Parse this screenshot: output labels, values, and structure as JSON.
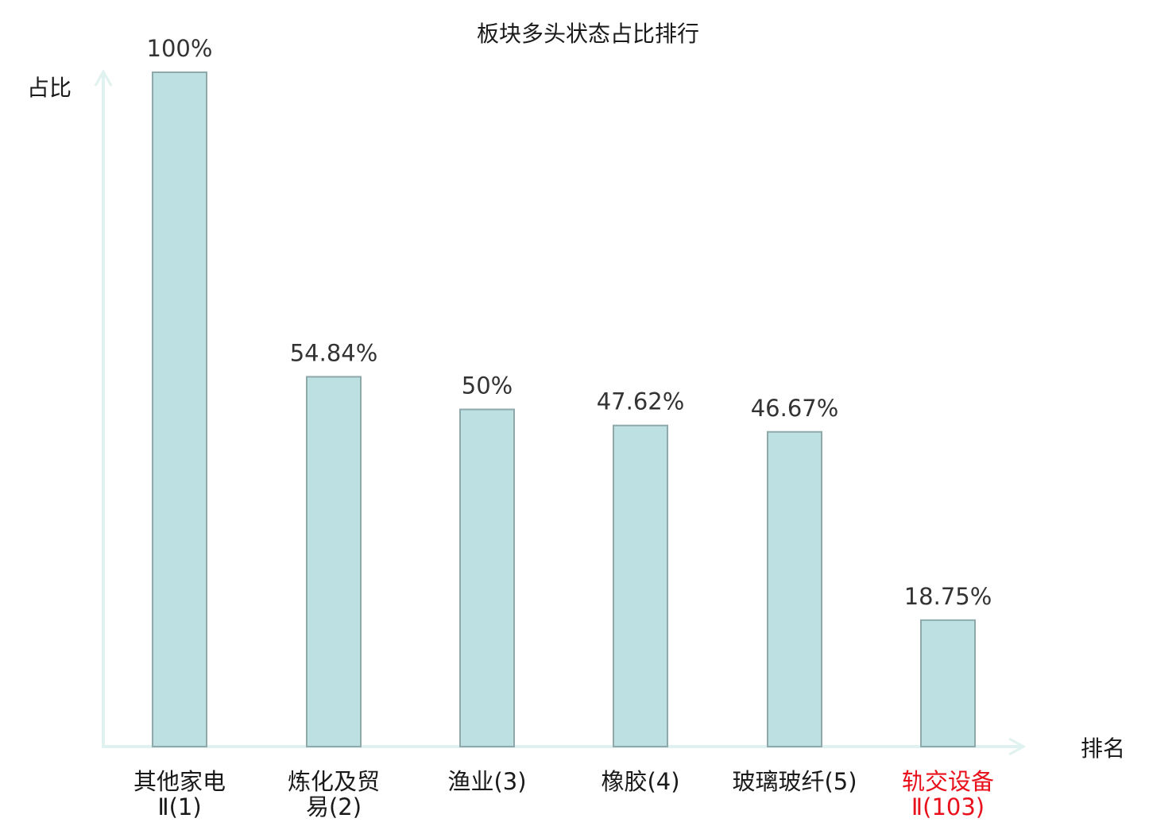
{
  "chart_data": {
    "type": "bar",
    "title": "板块多头状态占比排行",
    "ylabel": "占比",
    "xlabel": "排名",
    "ylim": [
      0,
      100
    ],
    "grid": false,
    "categories": [
      {
        "name": "其他家电",
        "rank": "Ⅱ(1)",
        "highlight": false
      },
      {
        "name": "炼化及贸",
        "rank": "易(2)",
        "highlight": false
      },
      {
        "name": "渔业",
        "rank": "(3)",
        "highlight": false
      },
      {
        "name": "橡胶",
        "rank": "(4)",
        "highlight": false
      },
      {
        "name": "玻璃玻纤",
        "rank": "(5)",
        "highlight": false
      },
      {
        "name": "轨交设备",
        "rank": "Ⅱ(103)",
        "highlight": true
      }
    ],
    "values": [
      100,
      54.84,
      50,
      47.62,
      46.67,
      18.75
    ],
    "value_labels": [
      "100%",
      "54.84%",
      "50%",
      "47.62%",
      "46.67%",
      "18.75%"
    ]
  },
  "colors": {
    "bar_fill": "#bde0e3",
    "bar_stroke": "#8fa9ab",
    "axis": "#e0f2ef",
    "highlight_text": "#e8101a"
  }
}
